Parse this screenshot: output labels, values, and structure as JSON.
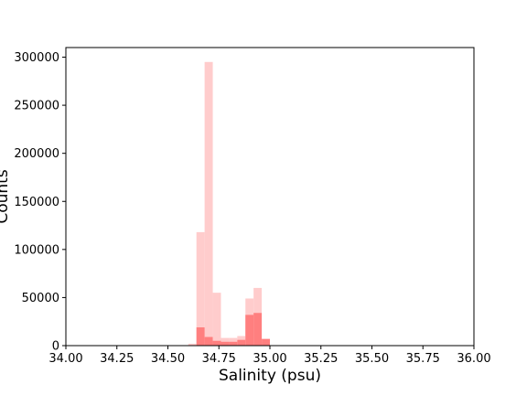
{
  "chart_data": {
    "type": "bar",
    "xlabel": "Salinity (psu)",
    "ylabel": "Counts",
    "xlim": [
      34.0,
      36.0
    ],
    "ylim": [
      0,
      310000
    ],
    "bin_width": 0.04,
    "xticks": [
      34.0,
      34.25,
      34.5,
      34.75,
      35.0,
      35.25,
      35.5,
      35.75,
      36.0
    ],
    "xtick_labels": [
      "34.00",
      "34.25",
      "34.50",
      "34.75",
      "35.00",
      "35.25",
      "35.50",
      "35.75",
      "36.00"
    ],
    "yticks": [
      0,
      50000,
      100000,
      150000,
      200000,
      250000,
      300000
    ],
    "ytick_labels": [
      "0",
      "50000",
      "100000",
      "150000",
      "200000",
      "250000",
      "300000"
    ],
    "series": [
      {
        "color": "#ffcccc",
        "bins": [
          {
            "x": 34.6,
            "value": 2000
          },
          {
            "x": 34.64,
            "value": 118000
          },
          {
            "x": 34.68,
            "value": 295000
          },
          {
            "x": 34.72,
            "value": 55000
          },
          {
            "x": 34.76,
            "value": 8000
          },
          {
            "x": 34.8,
            "value": 8000
          },
          {
            "x": 34.84,
            "value": 10000
          },
          {
            "x": 34.88,
            "value": 49000
          },
          {
            "x": 34.92,
            "value": 60000
          },
          {
            "x": 34.96,
            "value": 4000
          }
        ]
      },
      {
        "color": "#ff7f7f",
        "bins": [
          {
            "x": 34.64,
            "value": 19000
          },
          {
            "x": 34.68,
            "value": 9000
          },
          {
            "x": 34.72,
            "value": 5000
          },
          {
            "x": 34.76,
            "value": 4000
          },
          {
            "x": 34.8,
            "value": 4000
          },
          {
            "x": 34.84,
            "value": 6000
          },
          {
            "x": 34.88,
            "value": 32000
          },
          {
            "x": 34.92,
            "value": 34000
          },
          {
            "x": 34.96,
            "value": 7000
          }
        ]
      }
    ]
  }
}
